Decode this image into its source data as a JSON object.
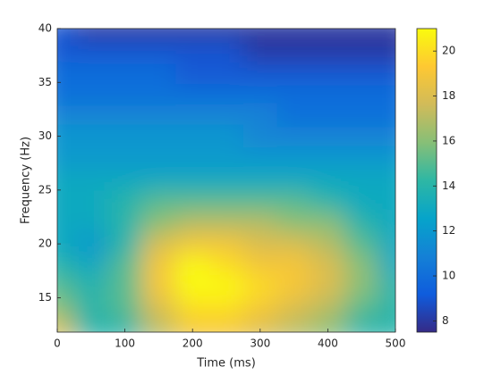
{
  "chart_data": {
    "type": "heatmap",
    "xlabel": "Time (ms)",
    "ylabel": "Frequency (Hz)",
    "x": [
      0,
      50,
      100,
      150,
      200,
      250,
      300,
      350,
      400,
      450,
      500
    ],
    "y": [
      12,
      14,
      16,
      18,
      20,
      22,
      24,
      26,
      28,
      30,
      32,
      34,
      36,
      38,
      40
    ],
    "values": [
      [
        18,
        14,
        14,
        17,
        19,
        19,
        18,
        17,
        16,
        14,
        14
      ],
      [
        16,
        14,
        15,
        18,
        20,
        20,
        19,
        18,
        17,
        15,
        14
      ],
      [
        15,
        14,
        15,
        19,
        21,
        21,
        20,
        19,
        18,
        16,
        14
      ],
      [
        14,
        13,
        15,
        19,
        21,
        20,
        19,
        19,
        18,
        16,
        13
      ],
      [
        13,
        12,
        14,
        18,
        19,
        19,
        18,
        18,
        17,
        15,
        13
      ],
      [
        13,
        13,
        14,
        16,
        17,
        17,
        17,
        16,
        16,
        14,
        13
      ],
      [
        13,
        13,
        14,
        15,
        15,
        15,
        15,
        15,
        14,
        13,
        13
      ],
      [
        13,
        13,
        13,
        13,
        13,
        13,
        13,
        13,
        13,
        13,
        13
      ],
      [
        12,
        12,
        12,
        12,
        12,
        12,
        12,
        12,
        12,
        12,
        12
      ],
      [
        12,
        12,
        12,
        12,
        12,
        12,
        11,
        11,
        11,
        11,
        11
      ],
      [
        11,
        11,
        11,
        11,
        11,
        11,
        11,
        10,
        10,
        10,
        10
      ],
      [
        10,
        10,
        10,
        10,
        10,
        10,
        10,
        10,
        10,
        10,
        10
      ],
      [
        10,
        10,
        10,
        10,
        9,
        9,
        9,
        9,
        9,
        9,
        9
      ],
      [
        9,
        9,
        9,
        9,
        9,
        9,
        8,
        8,
        8,
        8,
        8
      ],
      [
        9,
        8,
        8,
        8,
        8,
        8,
        8,
        8,
        8,
        8,
        8
      ]
    ],
    "xlim": [
      0,
      500
    ],
    "xticks": [
      0,
      100,
      200,
      300,
      400,
      500
    ],
    "ylim": [
      11.8,
      40
    ],
    "yticks": [
      15,
      20,
      25,
      30,
      35,
      40
    ],
    "clim": [
      7.5,
      21
    ],
    "cticks": [
      8,
      10,
      12,
      14,
      16,
      18,
      20
    ],
    "colormap": [
      "#352a87",
      "#0f5cdd",
      "#1481d6",
      "#06a4ca",
      "#2eb7a4",
      "#87bf77",
      "#d1bb59",
      "#fec832",
      "#f9fb0e"
    ]
  }
}
